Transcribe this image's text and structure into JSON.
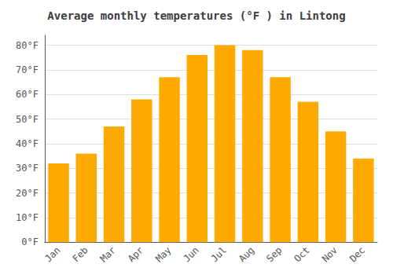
{
  "chart_data": {
    "type": "bar",
    "title": "Average monthly temperatures (°F ) in Lintong",
    "categories": [
      "Jan",
      "Feb",
      "Mar",
      "Apr",
      "May",
      "Jun",
      "Jul",
      "Aug",
      "Sep",
      "Oct",
      "Nov",
      "Dec"
    ],
    "values": [
      32,
      36,
      47,
      58,
      67,
      76,
      80,
      78,
      67,
      57,
      45,
      34
    ],
    "color": "#FFAA00",
    "ylim": [
      0,
      84
    ],
    "yticks": [
      {
        "value": 0,
        "label": "0°F"
      },
      {
        "value": 10,
        "label": "10°F"
      },
      {
        "value": 20,
        "label": "20°F"
      },
      {
        "value": 30,
        "label": "30°F"
      },
      {
        "value": 40,
        "label": "40°F"
      },
      {
        "value": 50,
        "label": "50°F"
      },
      {
        "value": 60,
        "label": "60°F"
      },
      {
        "value": 70,
        "label": "70°F"
      },
      {
        "value": 80,
        "label": "80°F"
      }
    ],
    "grid": true
  }
}
